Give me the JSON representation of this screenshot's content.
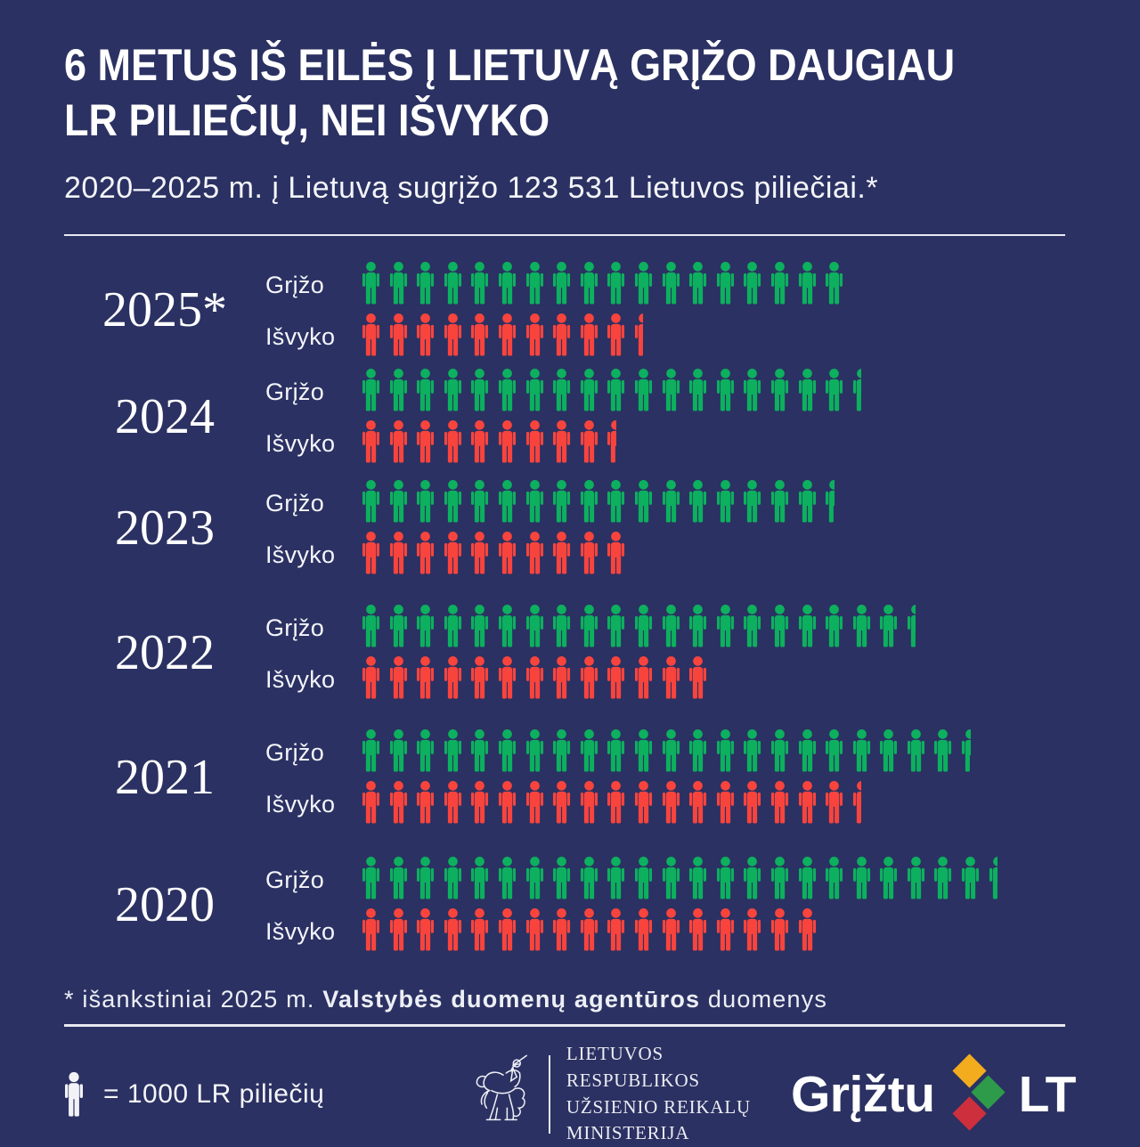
{
  "title": "6 METUS IŠ EILĖS Į LIETUVĄ GRĮŽO DAUGIAU\nLR PILIEČIŲ, NEI IŠVYKO",
  "subtitle": "2020–2025 m. į Lietuvą sugrįžo 123 531 Lietuvos piliečiai.*",
  "chart_data": {
    "type": "pictogram",
    "unit": {
      "symbol": "person-icon",
      "value": 1000,
      "label": "= 1000 LR piliečių"
    },
    "row_labels": {
      "returned": "Grįžo",
      "left": "Išvyko"
    },
    "colors": {
      "returned": "#0CB05E",
      "left": "#F8443D",
      "background": "#2B3162"
    },
    "years": [
      {
        "year": "2025*",
        "returned_icons": 18,
        "returned_value": 18000,
        "left_icons": 10.5,
        "left_value": 10500
      },
      {
        "year": "2024",
        "returned_icons": 18.5,
        "returned_value": 18500,
        "left_icons": 9.5,
        "left_value": 9500
      },
      {
        "year": "2023",
        "returned_icons": 17.5,
        "returned_value": 17500,
        "left_icons": 10,
        "left_value": 10000
      },
      {
        "year": "2022",
        "returned_icons": 20.5,
        "returned_value": 20500,
        "left_icons": 13,
        "left_value": 13000
      },
      {
        "year": "2021",
        "returned_icons": 22.5,
        "returned_value": 22500,
        "left_icons": 18.5,
        "left_value": 18500
      },
      {
        "year": "2020",
        "returned_icons": 23.5,
        "returned_value": 23500,
        "left_icons": 17,
        "left_value": 17000
      }
    ],
    "total_returned_2020_2025": 123531
  },
  "footnote": {
    "prefix": "* išankstiniai 2025 m. ",
    "bold": "Valstybės duomenų agentūros",
    "suffix": " duomenys"
  },
  "footer": {
    "legend_text": "= 1000 LR piliečių",
    "ministry": {
      "lines": [
        "LIETUVOS RESPUBLIKOS",
        "UŽSIENIO REIKALŲ",
        "MINISTERIJA"
      ]
    },
    "brand": {
      "left": "Grįžtu",
      "right": "LT"
    }
  }
}
